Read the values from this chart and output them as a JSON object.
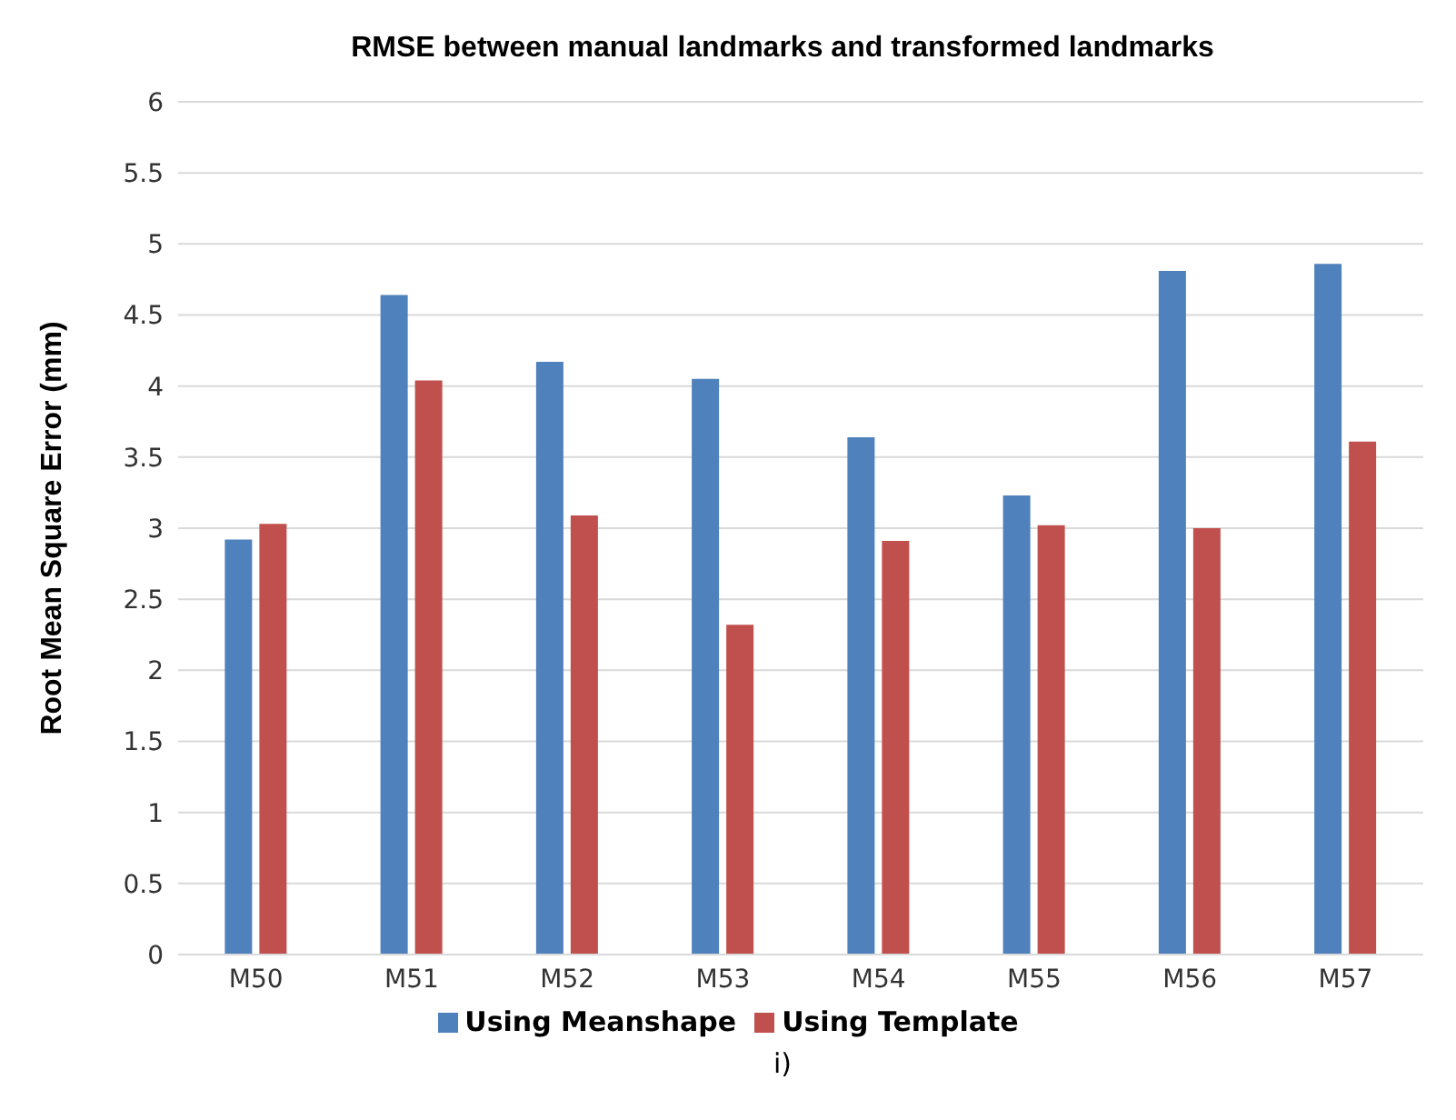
{
  "chart_data": {
    "type": "bar",
    "title": "RMSE between manual landmarks and transformed landmarks",
    "ylabel": "Root Mean Square Error (mm)",
    "categories": [
      "M50",
      "M51",
      "M52",
      "M53",
      "M54",
      "M55",
      "M56",
      "M57"
    ],
    "series": [
      {
        "name": "Using Meanshape",
        "color": "#4f81bd",
        "values": [
          2.92,
          4.64,
          4.17,
          4.05,
          3.64,
          3.23,
          4.81,
          4.86
        ]
      },
      {
        "name": "Using Template",
        "color": "#c0504d",
        "values": [
          3.03,
          4.04,
          3.09,
          2.32,
          2.91,
          3.02,
          3.0,
          3.61
        ]
      }
    ],
    "ylim": [
      0,
      6
    ],
    "yticks": [
      0,
      0.5,
      1,
      1.5,
      2,
      2.5,
      3,
      3.5,
      4,
      4.5,
      5,
      5.5,
      6
    ],
    "grid": "y",
    "legend": "bottom",
    "annotations": [
      "i)"
    ]
  }
}
